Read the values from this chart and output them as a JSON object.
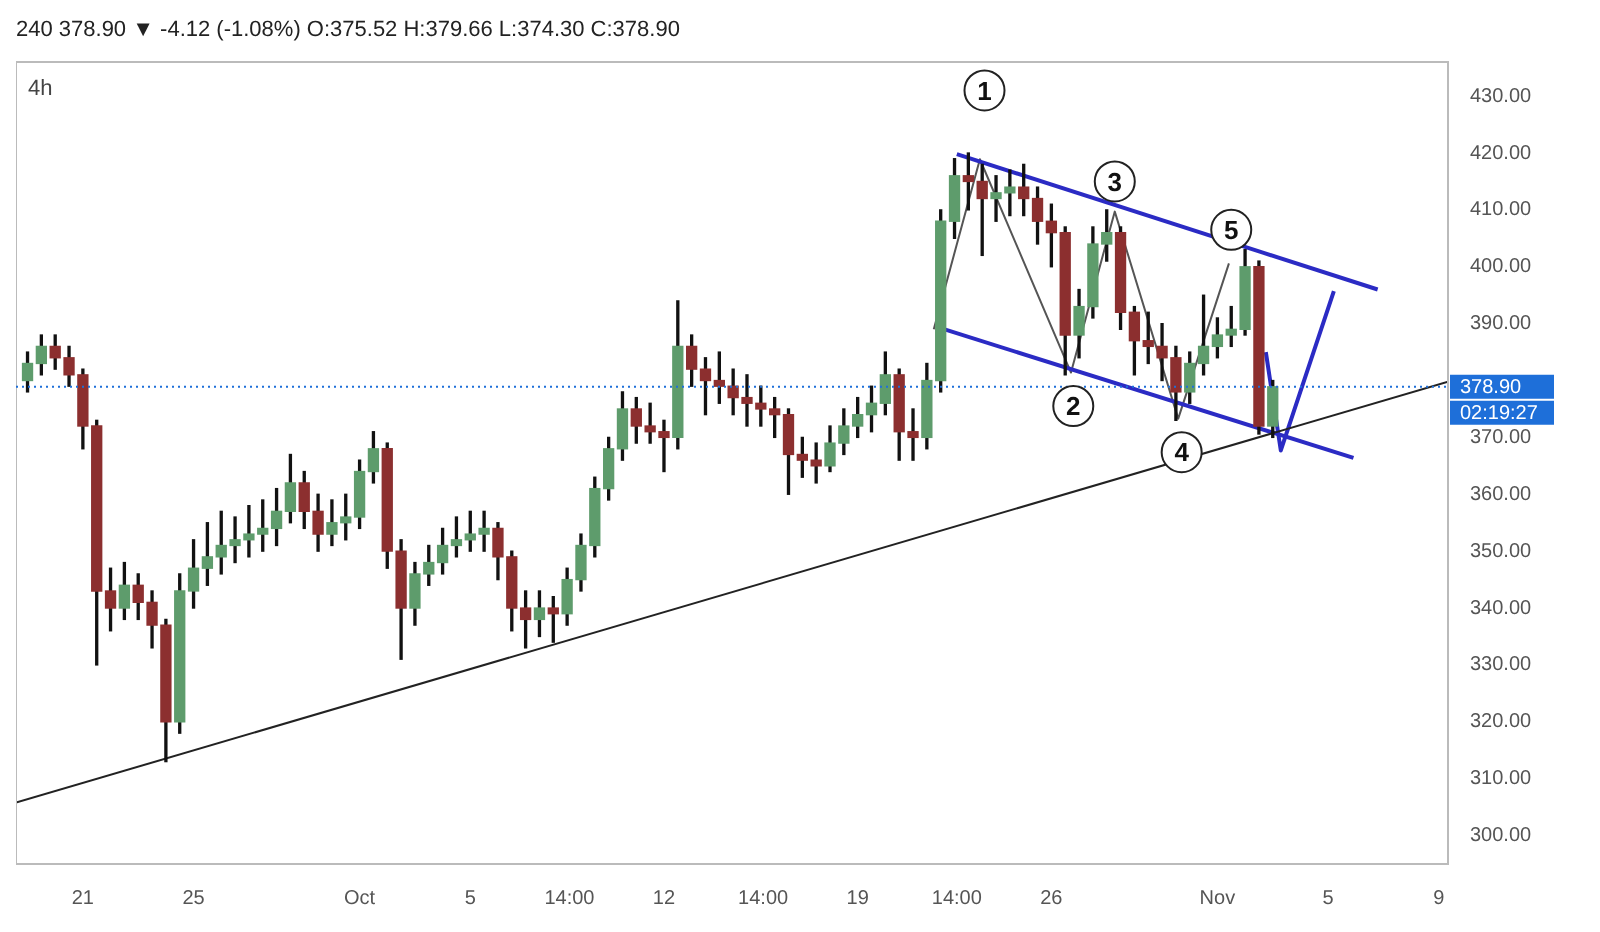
{
  "chart_data": {
    "type": "candlestick",
    "title": "240 378.90 ▼ -4.12 (-1.08%) O:375.52 H:379.66 L:374.30 C:378.90",
    "subtitle": "4h",
    "x": [
      "--09-19T00:00",
      "--09-19T12:00",
      "--09-20T00:00",
      "--09-20T12:00",
      "--09-21T00:00",
      "--09-21T12:00",
      "--09-22T00:00",
      "--09-22T12:00",
      "--09-23T00:00",
      "--09-23T12:00",
      "--09-24T00:00",
      "--09-24T12:00",
      "--09-25T00:00",
      "--09-25T12:00",
      "--09-26T00:00",
      "--09-26T12:00",
      "--09-27T00:00",
      "--09-27T12:00",
      "--09-28T00:00",
      "--09-28T12:00",
      "--09-29T00:00",
      "--09-29T12:00",
      "--09-30T00:00",
      "--09-30T12:00",
      "--10-01T00:00",
      "--10-01T12:00",
      "--10-02T00:00",
      "--10-02T12:00",
      "--10-03T00:00",
      "--10-03T12:00",
      "--10-04T00:00",
      "--10-04T12:00",
      "--10-05T00:00",
      "--10-05T12:00",
      "--10-06T00:00",
      "--10-06T12:00",
      "--10-07T00:00",
      "--10-07T12:00",
      "--10-08T00:00",
      "--10-08T12:00",
      "--10-09T00:00",
      "--10-09T12:00",
      "--10-10T00:00",
      "--10-10T12:00",
      "--10-11T00:00",
      "--10-11T12:00",
      "--10-12T00:00",
      "--10-12T12:00",
      "--10-13T00:00",
      "--10-13T12:00",
      "--10-14T00:00",
      "--10-14T12:00",
      "--10-15T00:00",
      "--10-15T12:00",
      "--10-16T00:00",
      "--10-16T12:00",
      "--10-17T00:00",
      "--10-17T12:00",
      "--10-18T00:00",
      "--10-18T12:00",
      "--10-19T00:00",
      "--10-19T12:00",
      "--10-20T00:00",
      "--10-20T12:00",
      "--10-21T00:00",
      "--10-21T12:00",
      "--10-22T00:00",
      "--10-22T12:00",
      "--10-23T00:00",
      "--10-23T12:00",
      "--10-24T00:00",
      "--10-24T12:00",
      "--10-25T00:00",
      "--10-25T12:00",
      "--10-26T00:00",
      "--10-26T12:00",
      "--10-27T00:00",
      "--10-27T12:00",
      "--10-28T00:00",
      "--10-28T12:00",
      "--10-29T00:00",
      "--10-29T12:00",
      "--10-30T00:00",
      "--10-30T12:00",
      "--10-31T00:00",
      "--10-31T12:00",
      "--11-01T00:00",
      "--11-01T12:00",
      "--11-02T00:00",
      "--11-02T12:00",
      "--11-03T00:00"
    ],
    "ohlc": [
      [
        380,
        385,
        378,
        383
      ],
      [
        383,
        388,
        381,
        386
      ],
      [
        386,
        388,
        382,
        384
      ],
      [
        384,
        386,
        379,
        381
      ],
      [
        381,
        382,
        368,
        372
      ],
      [
        372,
        373,
        330,
        343
      ],
      [
        343,
        347,
        336,
        340
      ],
      [
        340,
        348,
        338,
        344
      ],
      [
        344,
        346,
        338,
        341
      ],
      [
        341,
        343,
        333,
        337
      ],
      [
        337,
        338,
        313,
        320
      ],
      [
        320,
        346,
        318,
        343
      ],
      [
        343,
        352,
        340,
        347
      ],
      [
        347,
        355,
        344,
        349
      ],
      [
        349,
        357,
        346,
        351
      ],
      [
        351,
        356,
        348,
        352
      ],
      [
        352,
        358,
        349,
        353
      ],
      [
        353,
        359,
        350,
        354
      ],
      [
        354,
        361,
        351,
        357
      ],
      [
        357,
        367,
        355,
        362
      ],
      [
        362,
        364,
        354,
        357
      ],
      [
        357,
        360,
        350,
        353
      ],
      [
        353,
        359,
        351,
        355
      ],
      [
        355,
        360,
        352,
        356
      ],
      [
        356,
        366,
        354,
        364
      ],
      [
        364,
        371,
        362,
        368
      ],
      [
        368,
        369,
        347,
        350
      ],
      [
        350,
        352,
        331,
        340
      ],
      [
        340,
        348,
        337,
        346
      ],
      [
        346,
        351,
        344,
        348
      ],
      [
        348,
        354,
        346,
        351
      ],
      [
        351,
        356,
        349,
        352
      ],
      [
        352,
        357,
        350,
        353
      ],
      [
        353,
        357,
        350,
        354
      ],
      [
        354,
        355,
        345,
        349
      ],
      [
        349,
        350,
        336,
        340
      ],
      [
        340,
        343,
        333,
        338
      ],
      [
        338,
        343,
        335,
        340
      ],
      [
        340,
        342,
        334,
        339
      ],
      [
        339,
        347,
        337,
        345
      ],
      [
        345,
        353,
        343,
        351
      ],
      [
        351,
        363,
        349,
        361
      ],
      [
        361,
        370,
        359,
        368
      ],
      [
        368,
        378,
        366,
        375
      ],
      [
        375,
        377,
        369,
        372
      ],
      [
        372,
        376,
        369,
        371
      ],
      [
        371,
        373,
        364,
        370
      ],
      [
        370,
        394,
        368,
        386
      ],
      [
        386,
        388,
        379,
        382
      ],
      [
        382,
        384,
        374,
        380
      ],
      [
        380,
        385,
        376,
        379
      ],
      [
        379,
        382,
        374,
        377
      ],
      [
        377,
        381,
        372,
        376
      ],
      [
        376,
        379,
        372,
        375
      ],
      [
        375,
        377,
        370,
        374
      ],
      [
        374,
        375,
        360,
        367
      ],
      [
        367,
        370,
        363,
        366
      ],
      [
        366,
        369,
        362,
        365
      ],
      [
        365,
        372,
        364,
        369
      ],
      [
        369,
        375,
        367,
        372
      ],
      [
        372,
        377,
        370,
        374
      ],
      [
        374,
        379,
        371,
        376
      ],
      [
        376,
        385,
        374,
        381
      ],
      [
        381,
        382,
        366,
        371
      ],
      [
        371,
        375,
        366,
        370
      ],
      [
        370,
        383,
        368,
        380
      ],
      [
        380,
        410,
        378,
        408
      ],
      [
        408,
        419,
        405,
        416
      ],
      [
        416,
        420,
        410,
        415
      ],
      [
        415,
        418,
        402,
        412
      ],
      [
        412,
        416,
        408,
        413
      ],
      [
        413,
        417,
        409,
        414
      ],
      [
        414,
        418,
        409,
        412
      ],
      [
        412,
        414,
        404,
        408
      ],
      [
        408,
        411,
        400,
        406
      ],
      [
        406,
        407,
        381,
        388
      ],
      [
        388,
        396,
        384,
        393
      ],
      [
        393,
        407,
        391,
        404
      ],
      [
        404,
        410,
        401,
        406
      ],
      [
        406,
        407,
        389,
        392
      ],
      [
        392,
        393,
        381,
        387
      ],
      [
        387,
        392,
        383,
        386
      ],
      [
        386,
        390,
        380,
        384
      ],
      [
        384,
        386,
        373,
        378
      ],
      [
        378,
        385,
        376,
        383
      ],
      [
        383,
        395,
        381,
        386
      ],
      [
        386,
        391,
        384,
        388
      ],
      [
        388,
        393,
        386,
        389
      ],
      [
        389,
        403,
        388,
        400
      ],
      [
        400,
        401,
        370.6,
        372
      ],
      [
        372,
        380,
        370,
        378.9
      ]
    ],
    "colors": [
      "#5e9c6c",
      "#5e9c6c",
      "#8c2f2f",
      "#8c2f2f",
      "#8c2f2f",
      "#8c2f2f",
      "#8c2f2f",
      "#5e9c6c",
      "#8c2f2f",
      "#8c2f2f",
      "#8c2f2f",
      "#5e9c6c",
      "#5e9c6c",
      "#5e9c6c",
      "#5e9c6c",
      "#5e9c6c",
      "#5e9c6c",
      "#5e9c6c",
      "#5e9c6c",
      "#5e9c6c",
      "#8c2f2f",
      "#8c2f2f",
      "#5e9c6c",
      "#5e9c6c",
      "#5e9c6c",
      "#5e9c6c",
      "#8c2f2f",
      "#8c2f2f",
      "#5e9c6c",
      "#5e9c6c",
      "#5e9c6c",
      "#5e9c6c",
      "#5e9c6c",
      "#5e9c6c",
      "#8c2f2f",
      "#8c2f2f",
      "#8c2f2f",
      "#5e9c6c",
      "#8c2f2f",
      "#5e9c6c",
      "#5e9c6c",
      "#5e9c6c",
      "#5e9c6c",
      "#5e9c6c",
      "#8c2f2f",
      "#8c2f2f",
      "#8c2f2f",
      "#5e9c6c",
      "#8c2f2f",
      "#8c2f2f",
      "#8c2f2f",
      "#8c2f2f",
      "#8c2f2f",
      "#8c2f2f",
      "#8c2f2f",
      "#8c2f2f",
      "#8c2f2f",
      "#8c2f2f",
      "#5e9c6c",
      "#5e9c6c",
      "#5e9c6c",
      "#5e9c6c",
      "#5e9c6c",
      "#8c2f2f",
      "#8c2f2f",
      "#5e9c6c",
      "#5e9c6c",
      "#5e9c6c",
      "#8c2f2f",
      "#8c2f2f",
      "#5e9c6c",
      "#5e9c6c",
      "#8c2f2f",
      "#8c2f2f",
      "#8c2f2f",
      "#8c2f2f",
      "#5e9c6c",
      "#5e9c6c",
      "#5e9c6c",
      "#8c2f2f",
      "#8c2f2f",
      "#8c2f2f",
      "#8c2f2f",
      "#8c2f2f",
      "#5e9c6c",
      "#5e9c6c",
      "#5e9c6c",
      "#5e9c6c",
      "#5e9c6c",
      "#8c2f2f",
      "#5e9c6c"
    ],
    "series": [
      {
        "type": "line",
        "color": "#222222",
        "x": [
          "--09-18T14:00",
          "--11-09T08:00"
        ],
        "values": [
          305.8,
          379.8
        ]
      },
      {
        "type": "line",
        "color": "#2b2bc4",
        "x": [
          "--10-22T14:00",
          "--11-06T19:00"
        ],
        "values": [
          419.8,
          396
        ]
      },
      {
        "type": "line",
        "color": "#2b2bc4",
        "x": [
          "--10-22T00:00",
          "--11-05T22:00"
        ],
        "values": [
          389.2,
          366.4
        ]
      },
      {
        "type": "line",
        "color": "#555555",
        "x": [
          "--10-21T18:00",
          "--10-23T10:00",
          "--10-26T17:00",
          "--10-28T07:00",
          "--10-30T14:00",
          "--11-01T10:00"
        ],
        "values": [
          389,
          418.9,
          381.4,
          409.7,
          373.3,
          400.6
        ]
      },
      {
        "type": "line",
        "color": "#2b2bc4",
        "x": [
          "--11-02T18:00",
          "--11-03T07:00",
          "--11-05T05:00"
        ],
        "values": [
          385,
          367.7,
          395.7
        ]
      }
    ],
    "xlim": [
      "--09-18T14:00",
      "--11-09T08:00"
    ],
    "xticks": [
      {
        "value": "--09-21",
        "label": "21"
      },
      {
        "value": "--09-25",
        "label": "25"
      },
      {
        "value": "--10-01",
        "label": "Oct"
      },
      {
        "value": "--10-05",
        "label": "5"
      },
      {
        "value": "--10-08T14:00",
        "label": "14:00"
      },
      {
        "value": "--10-12",
        "label": "12"
      },
      {
        "value": "--10-15T14:00",
        "label": "14:00"
      },
      {
        "value": "--10-19",
        "label": "19"
      },
      {
        "value": "--10-22T14:00",
        "label": "14:00"
      },
      {
        "value": "--10-26",
        "label": "26"
      },
      {
        "value": "--11-01",
        "label": "Nov"
      },
      {
        "value": "--11-05",
        "label": "5"
      },
      {
        "value": "--11-09",
        "label": "9"
      }
    ],
    "ylim": [
      295,
      436
    ],
    "yticks": [
      {
        "value": 300,
        "label": "300.00"
      },
      {
        "value": 310,
        "label": "310.00"
      },
      {
        "value": 320,
        "label": "320.00"
      },
      {
        "value": 330,
        "label": "330.00"
      },
      {
        "value": 340,
        "label": "340.00"
      },
      {
        "value": 350,
        "label": "350.00"
      },
      {
        "value": 360,
        "label": "360.00"
      },
      {
        "value": 370,
        "label": "370.00"
      },
      {
        "value": 390,
        "label": "390.00"
      },
      {
        "value": 400,
        "label": "400.00"
      },
      {
        "value": 410,
        "label": "410.00"
      },
      {
        "value": 420,
        "label": "420.00"
      },
      {
        "value": 430,
        "label": "430.00"
      }
    ],
    "ref_lines": [
      {
        "axis": "y",
        "value": 378.9,
        "label": "378.90",
        "color": "#1e6fd9",
        "line_style": "dotted"
      }
    ],
    "annotations": [
      "02:19:27",
      {
        "text": "1",
        "x": "--10-23T14:00",
        "y": 431
      },
      {
        "text": "2",
        "x": "--10-26T19:00",
        "y": 375.5
      },
      {
        "text": "3",
        "x": "--10-28T07:00",
        "y": 415
      },
      {
        "text": "4",
        "x": "--10-30T17:00",
        "y": 367.4
      },
      {
        "text": "5",
        "x": "--11-01T12:00",
        "y": 406.5
      }
    ]
  }
}
